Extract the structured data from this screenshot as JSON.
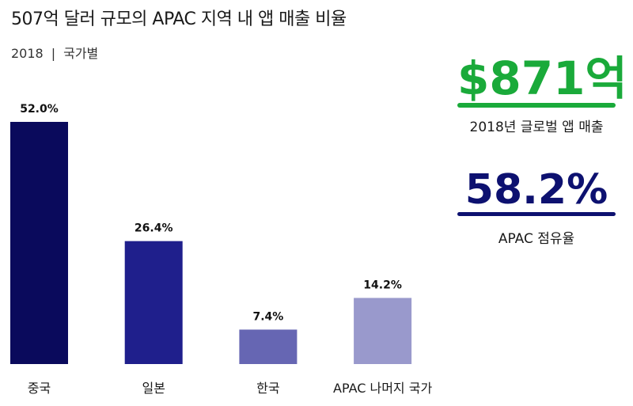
{
  "header": {
    "title": "507억 달러 규모의 APAC 지역 내 앱 매출 비율",
    "year": "2018",
    "divider": "|",
    "breakdown": "국가별"
  },
  "stats": {
    "global": {
      "value": "$871억",
      "label": "2018년 글로벌 앱 매출",
      "color": "#1aaa3a"
    },
    "apac": {
      "value": "58.2%",
      "label": "APAC 점유율",
      "color": "#0d1170"
    }
  },
  "chart_data": {
    "type": "bar",
    "categories": [
      "중국",
      "일본",
      "한국",
      "APAC 나머지 국가"
    ],
    "values": [
      52.0,
      26.4,
      7.4,
      14.2
    ],
    "value_labels": [
      "52.0%",
      "26.4%",
      "7.4%",
      "14.2%"
    ],
    "colors": [
      "#0a0a5c",
      "#1f1f8c",
      "#6666b3",
      "#9999cc"
    ],
    "title": "507억 달러 규모의 APAC 지역 내 앱 매출 비율",
    "subtitle": "2018 | 국가별",
    "xlabel": "",
    "ylabel": "",
    "ylim": [
      0,
      52.0
    ],
    "grid": false,
    "legend": "none"
  }
}
